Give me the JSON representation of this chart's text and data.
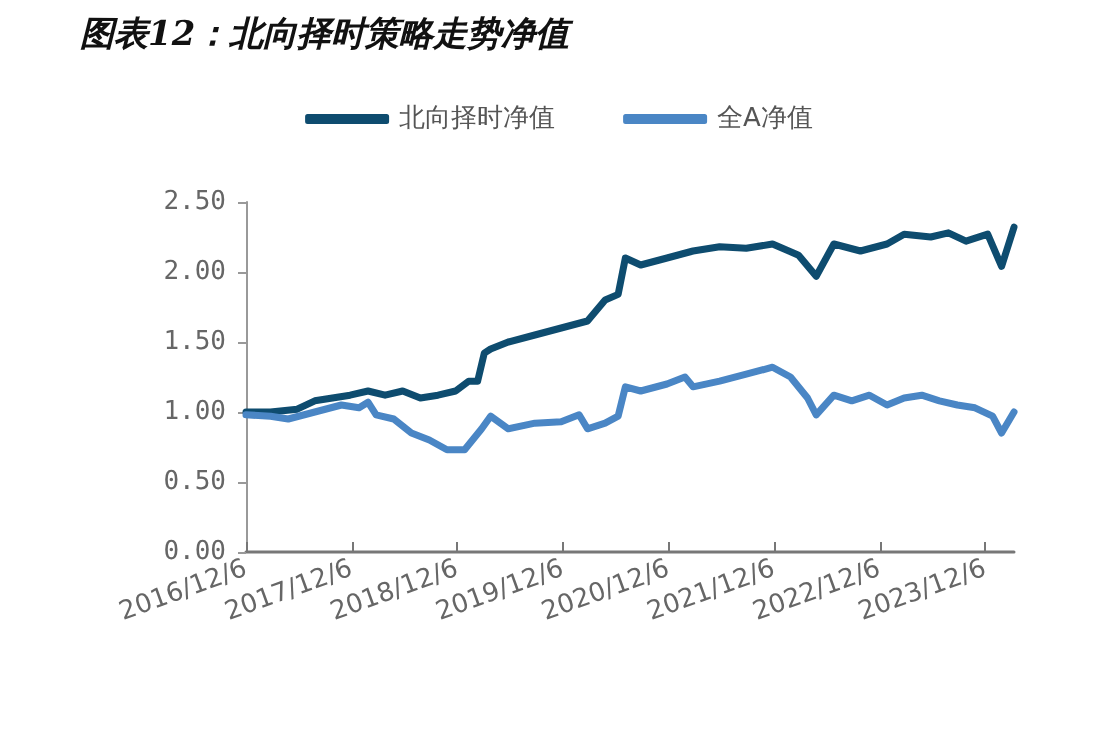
{
  "chart_data": {
    "type": "line",
    "title": "图表12：北向择时策略走势净值",
    "legend": "top",
    "grid": false,
    "marker": "none",
    "line_style": "solid",
    "xlim": [
      "2016-12-06",
      "2024-03-15"
    ],
    "xticks": [
      {
        "value": "2016-12-06",
        "label": "2016/12/6"
      },
      {
        "value": "2017-12-06",
        "label": "2017/12/6"
      },
      {
        "value": "2018-12-06",
        "label": "2018/12/6"
      },
      {
        "value": "2019-12-06",
        "label": "2019/12/6"
      },
      {
        "value": "2020-12-06",
        "label": "2020/12/6"
      },
      {
        "value": "2021-12-06",
        "label": "2021/12/6"
      },
      {
        "value": "2022-12-06",
        "label": "2022/12/6"
      },
      {
        "value": "2023-12-06",
        "label": "2023/12/6"
      }
    ],
    "ylim": [
      0,
      2.5
    ],
    "yticks": [
      {
        "value": 0,
        "label": "0.00"
      },
      {
        "value": 0.5,
        "label": "0.50"
      },
      {
        "value": 1,
        "label": "1.00"
      },
      {
        "value": 1.5,
        "label": "1.50"
      },
      {
        "value": 2,
        "label": "2.00"
      },
      {
        "value": 2.5,
        "label": "2.50"
      }
    ],
    "series": [
      {
        "name": "北向择时净值",
        "color": "#0e4c6f",
        "x": [
          "2016-12-06",
          "2017-03-01",
          "2017-06-01",
          "2017-08-01",
          "2017-10-01",
          "2017-12-01",
          "2018-02-01",
          "2018-04-01",
          "2018-06-01",
          "2018-08-01",
          "2018-10-01",
          "2018-12-01",
          "2019-01-15",
          "2019-02-15",
          "2019-03-10",
          "2019-04-01",
          "2019-06-01",
          "2019-09-01",
          "2019-12-01",
          "2020-03-01",
          "2020-05-01",
          "2020-06-15",
          "2020-07-10",
          "2020-09-01",
          "2020-12-01",
          "2021-03-01",
          "2021-06-01",
          "2021-09-01",
          "2021-12-01",
          "2022-03-01",
          "2022-05-01",
          "2022-07-01",
          "2022-10-01",
          "2023-01-01",
          "2023-03-01",
          "2023-06-01",
          "2023-08-01",
          "2023-10-01",
          "2023-12-15",
          "2024-02-01",
          "2024-03-15"
        ],
        "values": [
          1.0,
          1.0,
          1.02,
          1.08,
          1.1,
          1.12,
          1.15,
          1.12,
          1.15,
          1.1,
          1.12,
          1.15,
          1.22,
          1.22,
          1.42,
          1.45,
          1.5,
          1.55,
          1.6,
          1.65,
          1.8,
          1.84,
          2.1,
          2.05,
          2.1,
          2.15,
          2.18,
          2.17,
          2.2,
          2.12,
          1.97,
          2.2,
          2.15,
          2.2,
          2.27,
          2.25,
          2.28,
          2.22,
          2.27,
          2.04,
          2.32
        ]
      },
      {
        "name": "全A净值",
        "color": "#4a86c5",
        "x": [
          "2016-12-06",
          "2017-03-01",
          "2017-05-01",
          "2017-08-01",
          "2017-11-01",
          "2018-01-01",
          "2018-02-01",
          "2018-03-01",
          "2018-05-01",
          "2018-07-01",
          "2018-09-01",
          "2018-11-01",
          "2019-01-01",
          "2019-03-01",
          "2019-04-01",
          "2019-06-01",
          "2019-09-01",
          "2019-12-01",
          "2020-02-01",
          "2020-03-01",
          "2020-05-01",
          "2020-06-15",
          "2020-07-10",
          "2020-09-01",
          "2020-12-01",
          "2021-02-01",
          "2021-03-01",
          "2021-06-01",
          "2021-09-01",
          "2021-12-01",
          "2022-02-01",
          "2022-04-01",
          "2022-05-01",
          "2022-07-01",
          "2022-09-01",
          "2022-11-01",
          "2023-01-01",
          "2023-03-01",
          "2023-05-01",
          "2023-07-01",
          "2023-09-01",
          "2023-11-01",
          "2024-01-01",
          "2024-02-01",
          "2024-03-15"
        ],
        "values": [
          0.98,
          0.97,
          0.95,
          1.0,
          1.05,
          1.03,
          1.07,
          0.98,
          0.95,
          0.85,
          0.8,
          0.73,
          0.73,
          0.88,
          0.97,
          0.88,
          0.92,
          0.93,
          0.98,
          0.88,
          0.92,
          0.97,
          1.18,
          1.15,
          1.2,
          1.25,
          1.18,
          1.22,
          1.27,
          1.32,
          1.25,
          1.1,
          0.98,
          1.12,
          1.08,
          1.12,
          1.05,
          1.1,
          1.12,
          1.08,
          1.05,
          1.03,
          0.97,
          0.85,
          1.0
        ]
      }
    ]
  }
}
